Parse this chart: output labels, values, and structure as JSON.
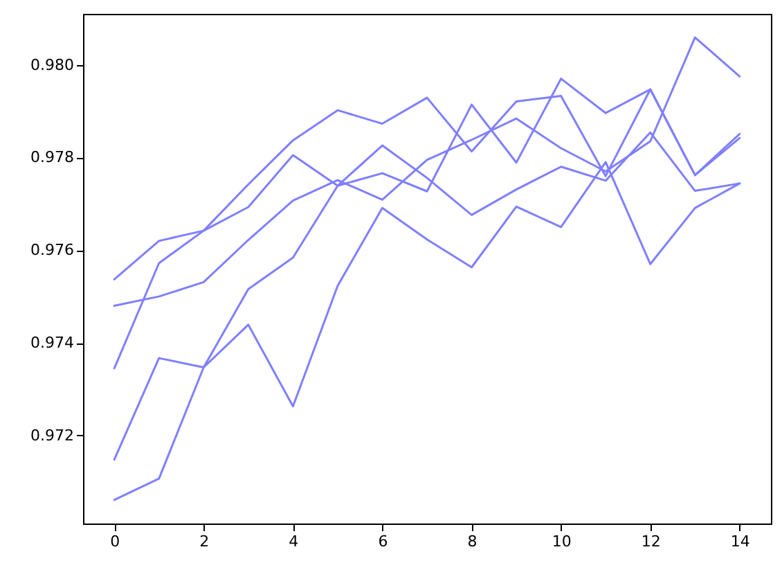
{
  "chart_data": {
    "type": "line",
    "x": [
      0,
      1,
      2,
      3,
      4,
      5,
      6,
      7,
      8,
      9,
      10,
      11,
      12,
      13,
      14
    ],
    "series": [
      {
        "color": "#7f7fff",
        "values": [
          0.97345,
          0.97572,
          0.97642,
          0.97742,
          0.97837,
          0.97902,
          0.97873,
          0.97929,
          0.97813,
          0.97921,
          0.97933,
          0.9776,
          0.97947,
          0.97762,
          0.97842
        ]
      },
      {
        "color": "#7f7fff",
        "values": [
          0.97537,
          0.9762,
          0.97642,
          0.97693,
          0.97805,
          0.97739,
          0.97766,
          0.97727,
          0.97914,
          0.97789,
          0.9797,
          0.97896,
          0.97947,
          0.97762,
          0.97851
        ]
      },
      {
        "color": "#7f7fff",
        "values": [
          0.9748,
          0.975,
          0.97531,
          0.97622,
          0.97707,
          0.97751,
          0.97709,
          0.97795,
          0.97838,
          0.97884,
          0.9782,
          0.9777,
          0.97835,
          0.98059,
          0.97975
        ]
      },
      {
        "color": "#7f7fff",
        "values": [
          0.97148,
          0.97367,
          0.97347,
          0.97516,
          0.97584,
          0.97739,
          0.97826,
          0.97756,
          0.97676,
          0.97731,
          0.9778,
          0.9775,
          0.97854,
          0.97728,
          0.97744
        ]
      },
      {
        "color": "#7f7fff",
        "values": [
          0.97061,
          0.97107,
          0.97347,
          0.97439,
          0.97263,
          0.97523,
          0.97691,
          0.97623,
          0.97563,
          0.97694,
          0.9765,
          0.9779,
          0.9757,
          0.97691,
          0.97744
        ]
      }
    ],
    "xlim": [
      -0.7,
      14.7
    ],
    "ylim": [
      0.9701,
      0.9811
    ],
    "xticks": [
      0,
      2,
      4,
      6,
      8,
      10,
      12,
      14
    ],
    "yticks": [
      0.972,
      0.974,
      0.976,
      0.978,
      {
        "value": 0.98,
        "label": "0.980"
      }
    ],
    "grid": false,
    "marker": "none",
    "line_style": "solid"
  }
}
